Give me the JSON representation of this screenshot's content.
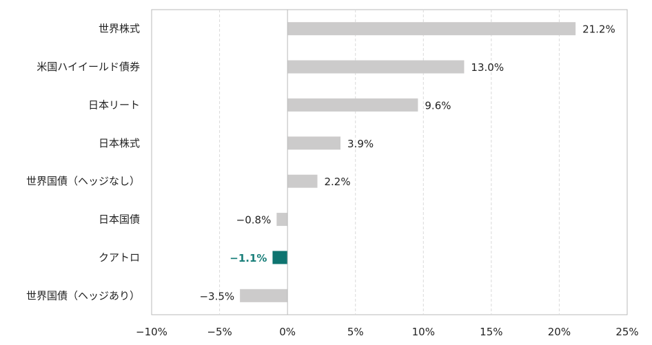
{
  "chart_data": {
    "type": "bar",
    "orientation": "horizontal",
    "categories": [
      "世界株式",
      "米国ハイイールド債券",
      "日本リート",
      "日本株式",
      "世界国債（ヘッジなし）",
      "日本国債",
      "クアトロ",
      "世界国債（ヘッジあり）"
    ],
    "values": [
      21.2,
      13.0,
      9.6,
      3.9,
      2.2,
      -0.8,
      -1.1,
      -3.5
    ],
    "value_labels": [
      "21.2%",
      "13.0%",
      "9.6%",
      "3.9%",
      "2.2%",
      "−0.8%",
      "−1.1%",
      "−3.5%"
    ],
    "highlight_index": 6,
    "xlim": [
      -10,
      25
    ],
    "x_ticks": [
      -10,
      -5,
      0,
      5,
      10,
      15,
      20,
      25
    ],
    "x_tick_labels": [
      "−10%",
      "−5%",
      "0%",
      "5%",
      "10%",
      "15%",
      "20%",
      "25%"
    ],
    "grid": "vertical dashed",
    "title": "",
    "xlabel": "",
    "ylabel": "",
    "colors": {
      "bar": "#cccbcb",
      "highlight_bar": "#0e7470",
      "highlight_label": "#1a7f7a",
      "grid": "#d9d9d9",
      "frame": "#b8b8b8"
    }
  }
}
